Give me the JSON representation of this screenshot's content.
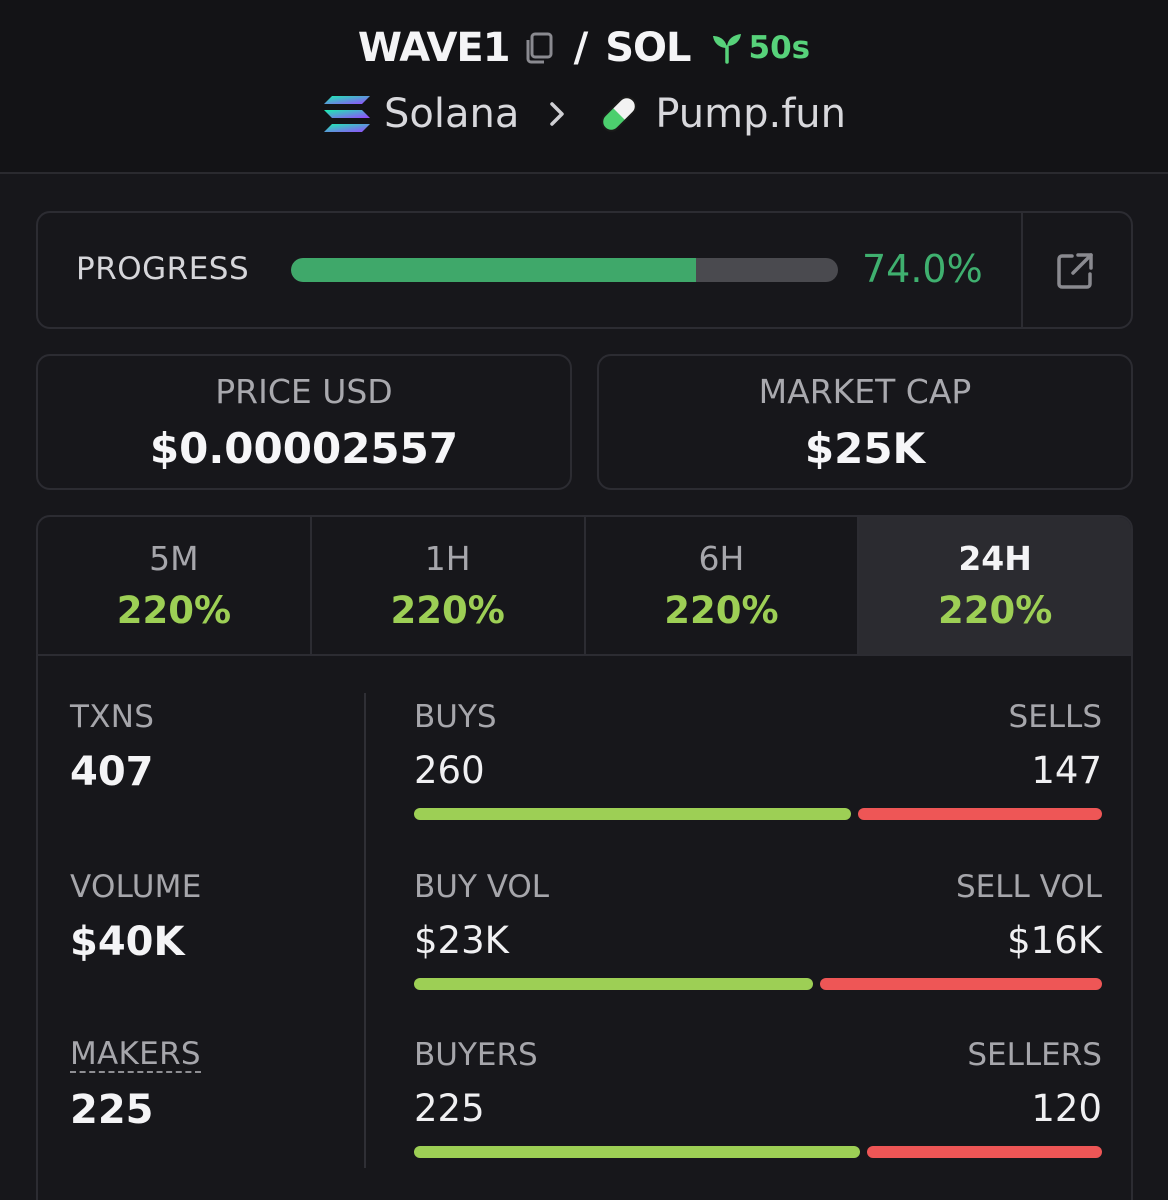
{
  "header": {
    "token_symbol": "WAVE1",
    "quote_symbol": "SOL",
    "separator": "/",
    "age": "50s",
    "chain": "Solana",
    "dex": "Pump.fun"
  },
  "progress": {
    "label": "PROGRESS",
    "percent_text": "74.0%",
    "fraction": 0.74
  },
  "price": {
    "label": "PRICE USD",
    "value": "$0.00002557"
  },
  "market_cap": {
    "label": "MARKET CAP",
    "value": "$25K"
  },
  "tabs": [
    {
      "label": "5M",
      "value": "220%"
    },
    {
      "label": "1H",
      "value": "220%"
    },
    {
      "label": "6H",
      "value": "220%"
    },
    {
      "label": "24H",
      "value": "220%",
      "active": true
    }
  ],
  "stats": {
    "txns": {
      "label": "TXNS",
      "value": "407"
    },
    "volume": {
      "label": "VOLUME",
      "value": "$40K"
    },
    "makers": {
      "label": "MAKERS",
      "value": "225"
    },
    "buys_sells": {
      "buy_label": "BUYS",
      "sell_label": "SELLS",
      "buy_value": "260",
      "sell_value": "147",
      "buy_fraction": 0.639
    },
    "vol_split": {
      "buy_label": "BUY VOL",
      "sell_label": "SELL VOL",
      "buy_value": "$23K",
      "sell_value": "$16K",
      "buy_fraction": 0.585
    },
    "buyers_sellers": {
      "buy_label": "BUYERS",
      "sell_label": "SELLERS",
      "buy_value": "225",
      "sell_value": "120",
      "buy_fraction": 0.652
    }
  },
  "colors": {
    "accent_green": "#3fb06f",
    "change_green": "#9dcf55",
    "sell_red": "#ee5656",
    "background": "#17171b"
  }
}
